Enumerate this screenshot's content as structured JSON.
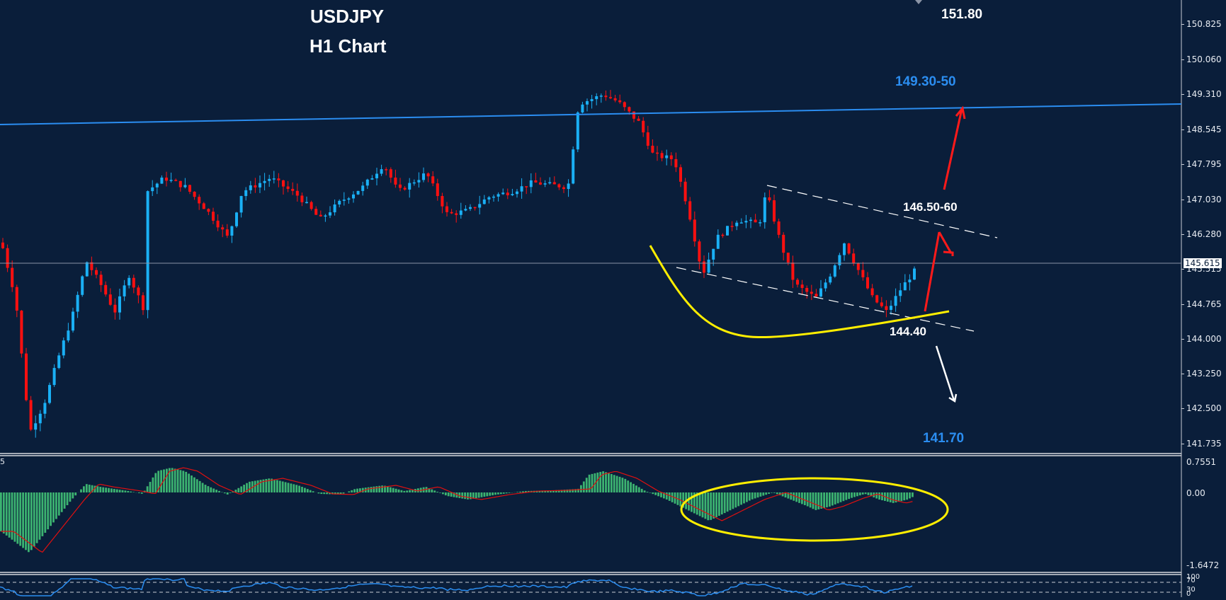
{
  "chart_data": [
    {
      "type": "candlestick",
      "title": "USDJPY",
      "subtitle": "H1 Chart",
      "symbol": "USDJPY",
      "timeframe": "H1",
      "y_axis": {
        "ticks": [
          "150.825",
          "150.060",
          "149.310",
          "148.545",
          "147.795",
          "147.030",
          "146.280",
          "145.515",
          "144.765",
          "144.000",
          "143.250",
          "142.500",
          "141.735"
        ],
        "range": [
          141.4,
          151.35
        ]
      },
      "current_price": "145.615",
      "grid": false,
      "colors": {
        "bull": "#1ab0f5",
        "bear": "#ff1010",
        "background": "#0a1e3a"
      },
      "price_path_approx": [
        [
          0,
          146.1
        ],
        [
          20,
          144.9
        ],
        [
          40,
          142.0
        ],
        [
          60,
          142.6
        ],
        [
          80,
          143.6
        ],
        [
          100,
          144.5
        ],
        [
          120,
          145.7
        ],
        [
          140,
          145.2
        ],
        [
          160,
          144.6
        ],
        [
          180,
          145.4
        ],
        [
          200,
          144.7
        ],
        [
          205,
          147.2
        ],
        [
          230,
          147.5
        ],
        [
          260,
          147.3
        ],
        [
          290,
          146.8
        ],
        [
          320,
          146.2
        ],
        [
          340,
          147.2
        ],
        [
          380,
          147.5
        ],
        [
          420,
          147.1
        ],
        [
          450,
          146.6
        ],
        [
          480,
          147.0
        ],
        [
          510,
          147.3
        ],
        [
          540,
          147.8
        ],
        [
          560,
          147.2
        ],
        [
          600,
          147.6
        ],
        [
          630,
          146.7
        ],
        [
          660,
          146.8
        ],
        [
          690,
          147.1
        ],
        [
          720,
          147.2
        ],
        [
          750,
          147.4
        ],
        [
          800,
          147.3
        ],
        [
          815,
          149.1
        ],
        [
          850,
          149.3
        ],
        [
          870,
          149.15
        ],
        [
          900,
          148.7
        ],
        [
          920,
          148.0
        ],
        [
          950,
          147.9
        ],
        [
          970,
          146.8
        ],
        [
          990,
          145.4
        ],
        [
          1010,
          146.2
        ],
        [
          1040,
          146.6
        ],
        [
          1070,
          146.5
        ],
        [
          1080,
          147.2
        ],
        [
          1100,
          146.1
        ],
        [
          1120,
          145.2
        ],
        [
          1150,
          144.9
        ],
        [
          1170,
          145.4
        ],
        [
          1190,
          146.1
        ],
        [
          1210,
          145.5
        ],
        [
          1230,
          144.9
        ],
        [
          1250,
          144.6
        ],
        [
          1270,
          145.1
        ],
        [
          1290,
          145.5
        ]
      ]
    },
    {
      "type": "histogram+line",
      "indicator": "MACD",
      "y_axis": {
        "ticks": [
          "0.7551",
          "0.00",
          "-1.6472"
        ]
      },
      "histogram_color": "#3cb371",
      "signal_color": "#e01010",
      "annotation": "yellow ellipse around recent MACD troughs"
    },
    {
      "type": "line",
      "indicator": "RSI",
      "y_axis": {
        "ticks": [
          "100",
          "70",
          "30",
          "0"
        ]
      },
      "levels": [
        70,
        30
      ],
      "line_color": "#2b8df0"
    }
  ],
  "header": {
    "symbol": "USDJPY",
    "timeframe_label": "H1 Chart"
  },
  "annotations": {
    "target_top": "151.80",
    "resistance_trendline": "149.30-50",
    "channel_top": "146.50-60",
    "support": "144.40",
    "target_bottom": "141.70"
  },
  "price_axis": {
    "ticks": [
      "150.825",
      "150.060",
      "149.310",
      "148.545",
      "147.795",
      "147.030",
      "146.280",
      "145.515",
      "144.765",
      "144.000",
      "143.250",
      "142.500",
      "141.735"
    ],
    "current_price": "145.615"
  },
  "macd_axis": {
    "ticks": [
      "0.7551",
      "0.00",
      "-1.6472"
    ],
    "left_label": "5"
  },
  "rsi_axis": {
    "ticks": [
      "100",
      "70",
      "30",
      "0"
    ]
  }
}
